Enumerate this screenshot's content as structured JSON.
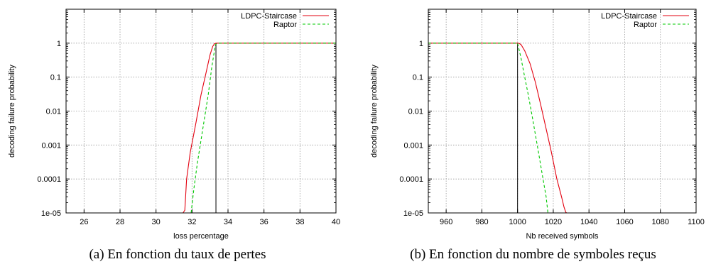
{
  "colors": {
    "ldpc": "#e3000f",
    "raptor": "#00c800",
    "grid": "#9a9a9a",
    "axis": "#000000"
  },
  "chart_data": [
    {
      "type": "line",
      "caption": "(a)  En fonction du taux de pertes",
      "xlabel": "loss percentage",
      "ylabel": "decoding failure probability",
      "xlim": [
        25,
        40
      ],
      "ylim": [
        1e-05,
        10
      ],
      "yscale": "log",
      "grid": true,
      "legend_placement": "top-right",
      "xticks": [
        26,
        28,
        30,
        32,
        34,
        36,
        38,
        40
      ],
      "xtick_labels": [
        "26",
        "28",
        "30",
        "32",
        "34",
        "36",
        "38",
        "40"
      ],
      "yticks": [
        1e-05,
        0.0001,
        0.001,
        0.01,
        0.1,
        1
      ],
      "ytick_labels": [
        "1e-05",
        "0.0001",
        "0.001",
        "0.01",
        "0.1",
        "1"
      ],
      "vertical_line_x": 33.33,
      "series": [
        {
          "name": "LDPC-Staircase",
          "color_key": "ldpc",
          "dash": "solid",
          "x": [
            31.5,
            31.6,
            31.7,
            31.9,
            32.2,
            32.5,
            32.8,
            33.0,
            33.15,
            33.25,
            33.35,
            33.5,
            34.5,
            40
          ],
          "y": [
            1e-05,
            1.2e-05,
            0.0001,
            0.0006,
            0.004,
            0.03,
            0.15,
            0.45,
            0.8,
            0.97,
            1,
            1,
            1,
            1
          ]
        },
        {
          "name": "Raptor",
          "color_key": "raptor",
          "dash": "dashed",
          "x": [
            31.95,
            32.1,
            32.3,
            32.6,
            32.9,
            33.1,
            33.3,
            33.4,
            34,
            40
          ],
          "y": [
            1e-05,
            5e-05,
            0.0003,
            0.003,
            0.03,
            0.2,
            0.9,
            1,
            1,
            1
          ]
        }
      ]
    },
    {
      "type": "line",
      "caption": "(b)  En fonction du nombre de symboles reçus",
      "xlabel": "Nb received symbols",
      "ylabel": "decoding failure probability",
      "xlim": [
        950,
        1100
      ],
      "ylim": [
        1e-05,
        10
      ],
      "yscale": "log",
      "grid": true,
      "legend_placement": "top-right",
      "xticks": [
        960,
        980,
        1000,
        1020,
        1040,
        1060,
        1080,
        1100
      ],
      "xtick_labels": [
        "960",
        "980",
        "1000",
        "1020",
        "1040",
        "1060",
        "1080",
        "1100"
      ],
      "yticks": [
        1e-05,
        0.0001,
        0.001,
        0.01,
        0.1,
        1
      ],
      "ytick_labels": [
        "1e-05",
        "0.0001",
        "0.001",
        "0.01",
        "0.1",
        "1"
      ],
      "vertical_line_x": 1000,
      "series": [
        {
          "name": "LDPC-Staircase",
          "color_key": "ldpc",
          "dash": "solid",
          "x": [
            950,
            999,
            1000,
            1001,
            1002,
            1004,
            1007,
            1010,
            1013,
            1016,
            1019,
            1022,
            1024,
            1025,
            1026,
            1027,
            1027.5
          ],
          "y": [
            1,
            1,
            1,
            0.98,
            0.9,
            0.6,
            0.25,
            0.07,
            0.015,
            0.003,
            0.0006,
            0.0001,
            4e-05,
            2.5e-05,
            1.5e-05,
            1.05e-05,
            1e-05
          ]
        },
        {
          "name": "Raptor",
          "color_key": "raptor",
          "dash": "dashed",
          "x": [
            950,
            999,
            1000,
            1001,
            1002,
            1004,
            1006,
            1008,
            1010,
            1012,
            1014,
            1016,
            1017
          ],
          "y": [
            1,
            1,
            1,
            0.6,
            0.35,
            0.1,
            0.03,
            0.008,
            0.002,
            0.0005,
            0.00012,
            3e-05,
            1e-05
          ]
        }
      ]
    }
  ]
}
